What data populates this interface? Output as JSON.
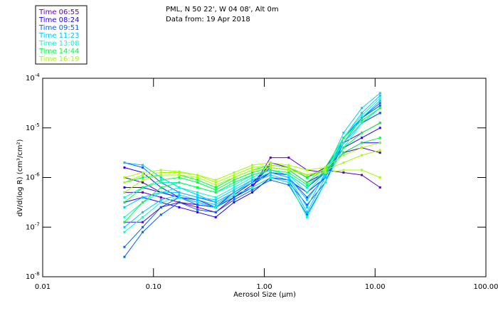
{
  "chart_data": {
    "type": "line",
    "title_lines": [
      "PML, N 50 22', W 04 08', Alt 0m",
      "Data from: 19 Apr 2018"
    ],
    "xlabel": "Aerosol Size (μm)",
    "ylabel": "dV/d(log R) (cm³/cm²)",
    "x_scale": "log",
    "y_scale": "log",
    "xlim": [
      0.01,
      100
    ],
    "ylim_log10": [
      -8,
      -4
    ],
    "x_ticks": [
      {
        "v": 0.01,
        "label": "0.01"
      },
      {
        "v": 0.1,
        "label": "0.10"
      },
      {
        "v": 1,
        "label": "1.00"
      },
      {
        "v": 10,
        "label": "10.00"
      },
      {
        "v": 100,
        "label": "100.00"
      }
    ],
    "y_ticks": [
      {
        "exp": -4,
        "base": "10",
        "sup": "-4"
      },
      {
        "exp": -5,
        "base": "10",
        "sup": "-5"
      },
      {
        "exp": -6,
        "base": "10",
        "sup": "-6"
      },
      {
        "exp": -7,
        "base": "10",
        "sup": "-7"
      },
      {
        "exp": -8,
        "base": "10",
        "sup": "-8"
      }
    ],
    "grid": false,
    "legend_placement": "top-left outside",
    "legend": [
      {
        "label": "Time 06:55",
        "color": "#6000c0"
      },
      {
        "label": "Time 08:24",
        "color": "#2000ff"
      },
      {
        "label": "Time 09:51",
        "color": "#0060ff"
      },
      {
        "label": "Time 11:23",
        "color": "#00c8ff"
      },
      {
        "label": "Time 13:08",
        "color": "#00ffc8"
      },
      {
        "label": "Time 14:44",
        "color": "#00ff40"
      },
      {
        "label": "Time 16:19",
        "color": "#a0ff00"
      }
    ],
    "x": [
      0.0547,
      0.0799,
      0.1168,
      0.1707,
      0.2494,
      0.3645,
      0.5327,
      0.7785,
      1.1378,
      1.6628,
      2.4302,
      3.5517,
      5.1906,
      7.586,
      11.086
    ],
    "series_log10": [
      {
        "time_idx": 0,
        "values": [
          -6.0,
          -6.1,
          -6.3,
          -6.4,
          -6.5,
          -6.6,
          -6.4,
          -6.2,
          -5.6,
          -5.6,
          -5.85,
          -5.9,
          -5.5,
          -5.4,
          -5.5
        ]
      },
      {
        "time_idx": 0,
        "values": [
          -6.9,
          -6.9,
          -6.6,
          -6.5,
          -6.55,
          -6.6,
          -6.35,
          -6.1,
          -5.75,
          -5.8,
          -6.0,
          -5.8,
          -5.3,
          -5.1,
          -4.9
        ]
      },
      {
        "time_idx": 0,
        "values": [
          -6.3,
          -6.3,
          -6.4,
          -6.5,
          -6.6,
          -6.7,
          -6.4,
          -6.2,
          -5.7,
          -5.8,
          -5.95,
          -5.85,
          -5.9,
          -5.95,
          -6.2
        ]
      },
      {
        "time_idx": 1,
        "values": [
          -5.8,
          -5.9,
          -6.2,
          -6.4,
          -6.5,
          -6.6,
          -6.3,
          -6.1,
          -5.8,
          -5.85,
          -6.1,
          -5.9,
          -5.4,
          -5.2,
          -5.0
        ]
      },
      {
        "time_idx": 1,
        "values": [
          -6.5,
          -6.4,
          -6.5,
          -6.6,
          -6.7,
          -6.8,
          -6.5,
          -6.3,
          -6.0,
          -6.05,
          -6.3,
          -6.0,
          -5.3,
          -4.9,
          -4.7
        ]
      },
      {
        "time_idx": 1,
        "values": [
          -6.2,
          -6.2,
          -6.3,
          -6.4,
          -6.45,
          -6.6,
          -6.4,
          -6.15,
          -5.9,
          -5.95,
          -6.2,
          -5.9,
          -5.5,
          -5.3,
          -5.3
        ]
      },
      {
        "time_idx": 2,
        "values": [
          -7.6,
          -7.1,
          -6.75,
          -6.5,
          -6.65,
          -6.7,
          -6.45,
          -6.25,
          -6.05,
          -6.15,
          -6.75,
          -6.1,
          -5.3,
          -4.8,
          -4.55
        ]
      },
      {
        "time_idx": 2,
        "values": [
          -7.4,
          -7.0,
          -6.6,
          -6.4,
          -6.55,
          -6.6,
          -6.4,
          -6.2,
          -6.0,
          -6.1,
          -6.55,
          -6.1,
          -5.2,
          -4.8,
          -4.5
        ]
      },
      {
        "time_idx": 2,
        "values": [
          -5.7,
          -5.8,
          -6.1,
          -6.3,
          -6.4,
          -6.5,
          -6.3,
          -6.1,
          -5.9,
          -6.0,
          -6.4,
          -6.0,
          -5.3,
          -4.9,
          -4.7
        ]
      },
      {
        "time_idx": 3,
        "values": [
          -5.7,
          -5.75,
          -6.0,
          -6.2,
          -6.35,
          -6.5,
          -6.3,
          -6.05,
          -5.9,
          -6.0,
          -6.6,
          -5.9,
          -5.1,
          -4.6,
          -4.3
        ]
      },
      {
        "time_idx": 3,
        "values": [
          -7.0,
          -6.7,
          -6.45,
          -6.35,
          -6.45,
          -6.55,
          -6.3,
          -6.1,
          -5.95,
          -6.05,
          -6.7,
          -6.0,
          -5.2,
          -4.7,
          -4.35
        ]
      },
      {
        "time_idx": 3,
        "values": [
          -6.6,
          -6.4,
          -6.3,
          -6.3,
          -6.4,
          -6.45,
          -6.25,
          -6.05,
          -5.9,
          -6.0,
          -6.45,
          -5.95,
          -5.3,
          -4.8,
          -4.45
        ]
      },
      {
        "time_idx": 4,
        "values": [
          -6.8,
          -6.5,
          -6.3,
          -6.2,
          -6.3,
          -6.4,
          -6.2,
          -6.0,
          -5.85,
          -5.95,
          -6.3,
          -5.9,
          -5.2,
          -4.75,
          -4.4
        ]
      },
      {
        "time_idx": 4,
        "values": [
          -6.4,
          -6.2,
          -6.1,
          -6.1,
          -6.2,
          -6.3,
          -6.15,
          -5.95,
          -5.85,
          -5.95,
          -6.2,
          -5.85,
          -5.3,
          -4.9,
          -4.6
        ]
      },
      {
        "time_idx": 4,
        "values": [
          -7.1,
          -6.8,
          -6.5,
          -6.4,
          -6.5,
          -6.6,
          -6.35,
          -6.2,
          -6.0,
          -6.1,
          -6.8,
          -6.1,
          -5.4,
          -4.9,
          -4.6
        ]
      },
      {
        "time_idx": 5,
        "values": [
          -6.5,
          -6.2,
          -6.05,
          -6.0,
          -6.1,
          -6.25,
          -6.05,
          -5.9,
          -5.8,
          -5.85,
          -6.1,
          -5.8,
          -5.2,
          -4.85,
          -4.6
        ]
      },
      {
        "time_idx": 5,
        "values": [
          -6.1,
          -6.0,
          -5.95,
          -5.95,
          -6.05,
          -6.2,
          -6.0,
          -5.85,
          -5.75,
          -5.8,
          -6.0,
          -5.85,
          -5.4,
          -5.1,
          -4.9
        ]
      },
      {
        "time_idx": 5,
        "values": [
          -6.9,
          -6.5,
          -6.2,
          -6.1,
          -6.2,
          -6.3,
          -6.1,
          -5.95,
          -5.85,
          -5.9,
          -6.15,
          -5.9,
          -5.5,
          -5.3,
          -5.2
        ]
      },
      {
        "time_idx": 6,
        "values": [
          -6.1,
          -5.95,
          -5.9,
          -5.9,
          -5.95,
          -6.1,
          -5.95,
          -5.8,
          -5.75,
          -5.8,
          -5.95,
          -5.85,
          -5.7,
          -5.55,
          -5.45
        ]
      },
      {
        "time_idx": 6,
        "values": [
          -6.3,
          -6.05,
          -5.95,
          -5.95,
          -6.0,
          -6.15,
          -6.0,
          -5.85,
          -5.8,
          -5.85,
          -5.95,
          -5.9,
          -5.85,
          -5.85,
          -6.0
        ]
      },
      {
        "time_idx": 6,
        "values": [
          -6.0,
          -5.9,
          -5.85,
          -5.88,
          -5.95,
          -6.05,
          -5.9,
          -5.75,
          -5.7,
          -5.75,
          -5.85,
          -5.8,
          -5.55,
          -5.4,
          -5.3
        ]
      }
    ]
  }
}
